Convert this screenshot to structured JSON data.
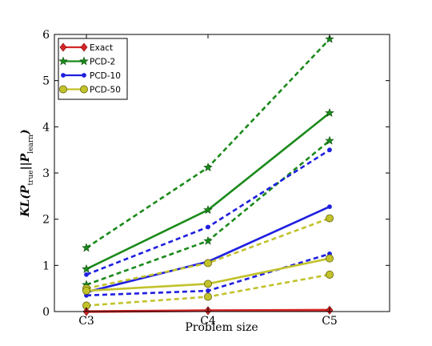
{
  "chart_data": {
    "type": "line",
    "categories": [
      "C3",
      "C4",
      "C5"
    ],
    "xlabel": "Problem size",
    "ylabel": "KL(P_true||P_learn)",
    "ylim": [
      0,
      6
    ],
    "yticks": [
      "0",
      "1",
      "2",
      "3",
      "4",
      "5",
      "6"
    ],
    "grid": false,
    "legend_position": "top-left",
    "legend": [
      {
        "name": "Exact",
        "color": "#d62728",
        "marker": "diamond"
      },
      {
        "name": "PCD-2",
        "color": "#1b8a1b",
        "marker": "star"
      },
      {
        "name": "PCD-10",
        "color": "#1f1fe0",
        "marker": "dot"
      },
      {
        "name": "PCD-50",
        "color": "#c2c22b",
        "marker": "circle"
      }
    ],
    "series": [
      {
        "name": "Exact",
        "style": "solid",
        "values": [
          0.0,
          0.02,
          0.03
        ]
      },
      {
        "name": "PCD-2",
        "style": "dashed",
        "values": [
          1.38,
          3.12,
          5.9
        ]
      },
      {
        "name": "PCD-2",
        "style": "solid",
        "values": [
          0.92,
          2.2,
          4.3
        ]
      },
      {
        "name": "PCD-2",
        "style": "dashed",
        "values": [
          0.58,
          1.53,
          3.7
        ]
      },
      {
        "name": "PCD-10",
        "style": "dashed",
        "values": [
          0.8,
          1.83,
          3.5
        ]
      },
      {
        "name": "PCD-10",
        "style": "solid",
        "values": [
          0.42,
          1.08,
          2.27
        ]
      },
      {
        "name": "PCD-10",
        "style": "dashed",
        "values": [
          0.35,
          0.45,
          1.25
        ]
      },
      {
        "name": "PCD-50",
        "style": "dashed",
        "values": [
          0.5,
          1.05,
          2.02
        ]
      },
      {
        "name": "PCD-50",
        "style": "solid",
        "values": [
          0.45,
          0.6,
          1.15
        ]
      },
      {
        "name": "PCD-50",
        "style": "dashed",
        "values": [
          0.13,
          0.32,
          0.8
        ]
      }
    ]
  }
}
